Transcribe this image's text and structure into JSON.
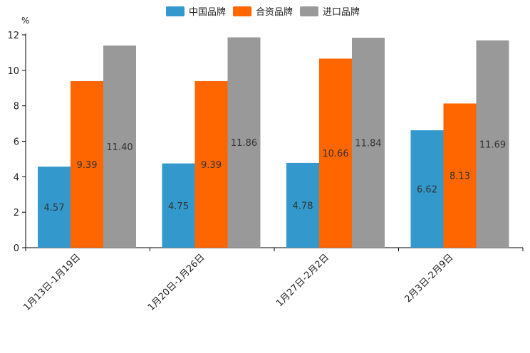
{
  "chart_data": {
    "type": "bar",
    "title": "",
    "xlabel": "",
    "ylabel": "%",
    "ylim": [
      0,
      12
    ],
    "yticks": [
      0,
      2,
      4,
      6,
      8,
      10,
      12
    ],
    "grid": false,
    "legend_position": "top-center",
    "categories": [
      "1月13日-1月19日",
      "1月20日-1月26日",
      "1月27日-2月2日",
      "2月3日-2月9日"
    ],
    "series": [
      {
        "name": "中国品牌",
        "color": "#3399cc",
        "values": [
          4.57,
          4.75,
          4.78,
          6.62
        ]
      },
      {
        "name": "合资品牌",
        "color": "#ff6600",
        "values": [
          9.39,
          9.39,
          10.66,
          8.13
        ]
      },
      {
        "name": "进口品牌",
        "color": "#999999",
        "values": [
          11.4,
          11.86,
          11.84,
          11.69
        ]
      }
    ]
  }
}
